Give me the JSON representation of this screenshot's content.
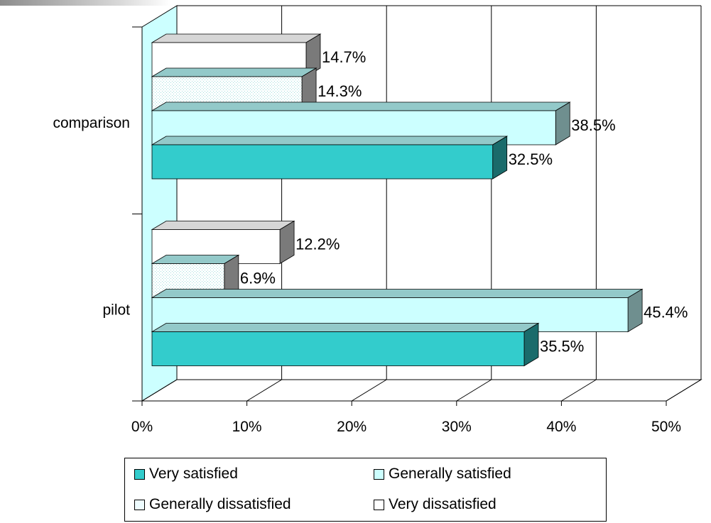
{
  "chart_data": {
    "type": "bar",
    "orientation": "horizontal",
    "style": "3d",
    "categories": [
      "pilot",
      "comparison"
    ],
    "series": [
      {
        "name": "Very satisfied",
        "values": [
          35.5,
          32.5
        ],
        "labels": [
          "35.5%",
          "32.5%"
        ],
        "color": "#33CCCC"
      },
      {
        "name": "Generally satisfied",
        "values": [
          45.4,
          38.5
        ],
        "labels": [
          "45.4%",
          "38.5%"
        ],
        "color": "#CCFFFF"
      },
      {
        "name": "Generally dissatisfied",
        "values": [
          6.9,
          14.3
        ],
        "labels": [
          "6.9%",
          "14.3%"
        ],
        "color": "#EEFCFF"
      },
      {
        "name": "Very dissatisfied",
        "values": [
          12.2,
          14.7
        ],
        "labels": [
          "12.2%",
          "14.7%"
        ],
        "color": "#FFFFFF"
      }
    ],
    "xlim": [
      0,
      50
    ],
    "xticks": [
      0,
      10,
      20,
      30,
      40,
      50
    ],
    "xtick_labels": [
      "0%",
      "10%",
      "20%",
      "30%",
      "40%",
      "50%"
    ],
    "grid": true,
    "legend": "bottom"
  }
}
